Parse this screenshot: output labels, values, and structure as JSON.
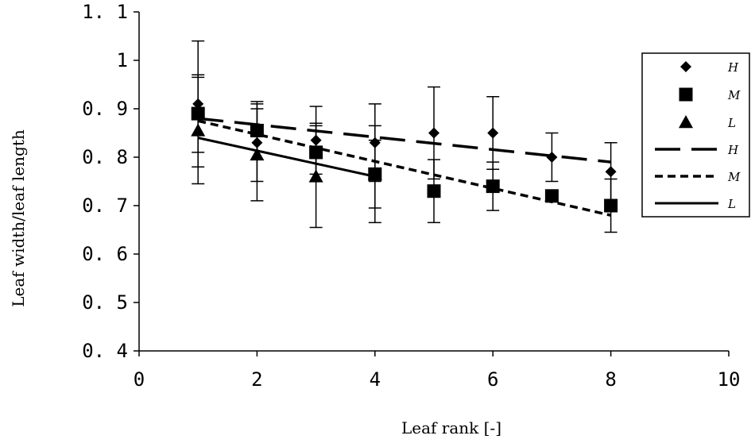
{
  "chart_data": {
    "type": "scatter",
    "xlabel": "Leaf rank [-]",
    "ylabel": "Leaf width/leaf length",
    "xlim": [
      0,
      10
    ],
    "ylim": [
      0.4,
      1.1
    ],
    "xticks": [
      0,
      2,
      4,
      6,
      8,
      10
    ],
    "xtick_labels": [
      "0",
      "2",
      "4",
      "6",
      "8",
      "10"
    ],
    "yticks": [
      0.4,
      0.5,
      0.6,
      0.7,
      0.8,
      0.9,
      1.0,
      1.1
    ],
    "ytick_labels": [
      "0. 4",
      "0. 5",
      "0. 6",
      "0. 7",
      "0. 8",
      "0. 9",
      "1",
      "1. 1"
    ],
    "grid": false,
    "legend_position": "right",
    "series": [
      {
        "name": "H",
        "marker": "diamond",
        "x": [
          1,
          2,
          3,
          4,
          5,
          6,
          7,
          8
        ],
        "y": [
          0.91,
          0.83,
          0.835,
          0.83,
          0.85,
          0.85,
          0.8,
          0.77
        ],
        "err": [
          0.13,
          0.08,
          0.07,
          0.08,
          0.095,
          0.075,
          0.05,
          0.06
        ]
      },
      {
        "name": "M",
        "marker": "square",
        "x": [
          1,
          2,
          3,
          4,
          5,
          6,
          7,
          8
        ],
        "y": [
          0.89,
          0.855,
          0.81,
          0.765,
          0.73,
          0.74,
          0.72,
          0.7
        ],
        "err": [
          0.08,
          0.06,
          0.06,
          0.07,
          0.065,
          0.05,
          0.0,
          0.055
        ]
      },
      {
        "name": "L",
        "marker": "triangle",
        "x": [
          1,
          2,
          3,
          4
        ],
        "y": [
          0.855,
          0.805,
          0.76,
          0.765
        ],
        "err": [
          0.11,
          0.095,
          0.105,
          0.1
        ]
      }
    ],
    "trendlines": [
      {
        "name": "H",
        "style": "long-dash",
        "x": [
          1,
          8
        ],
        "y": [
          0.88,
          0.79
        ]
      },
      {
        "name": "M",
        "style": "short-dash",
        "x": [
          1,
          8
        ],
        "y": [
          0.875,
          0.68
        ]
      },
      {
        "name": "L",
        "style": "solid",
        "x": [
          1,
          4
        ],
        "y": [
          0.84,
          0.76
        ]
      }
    ]
  }
}
